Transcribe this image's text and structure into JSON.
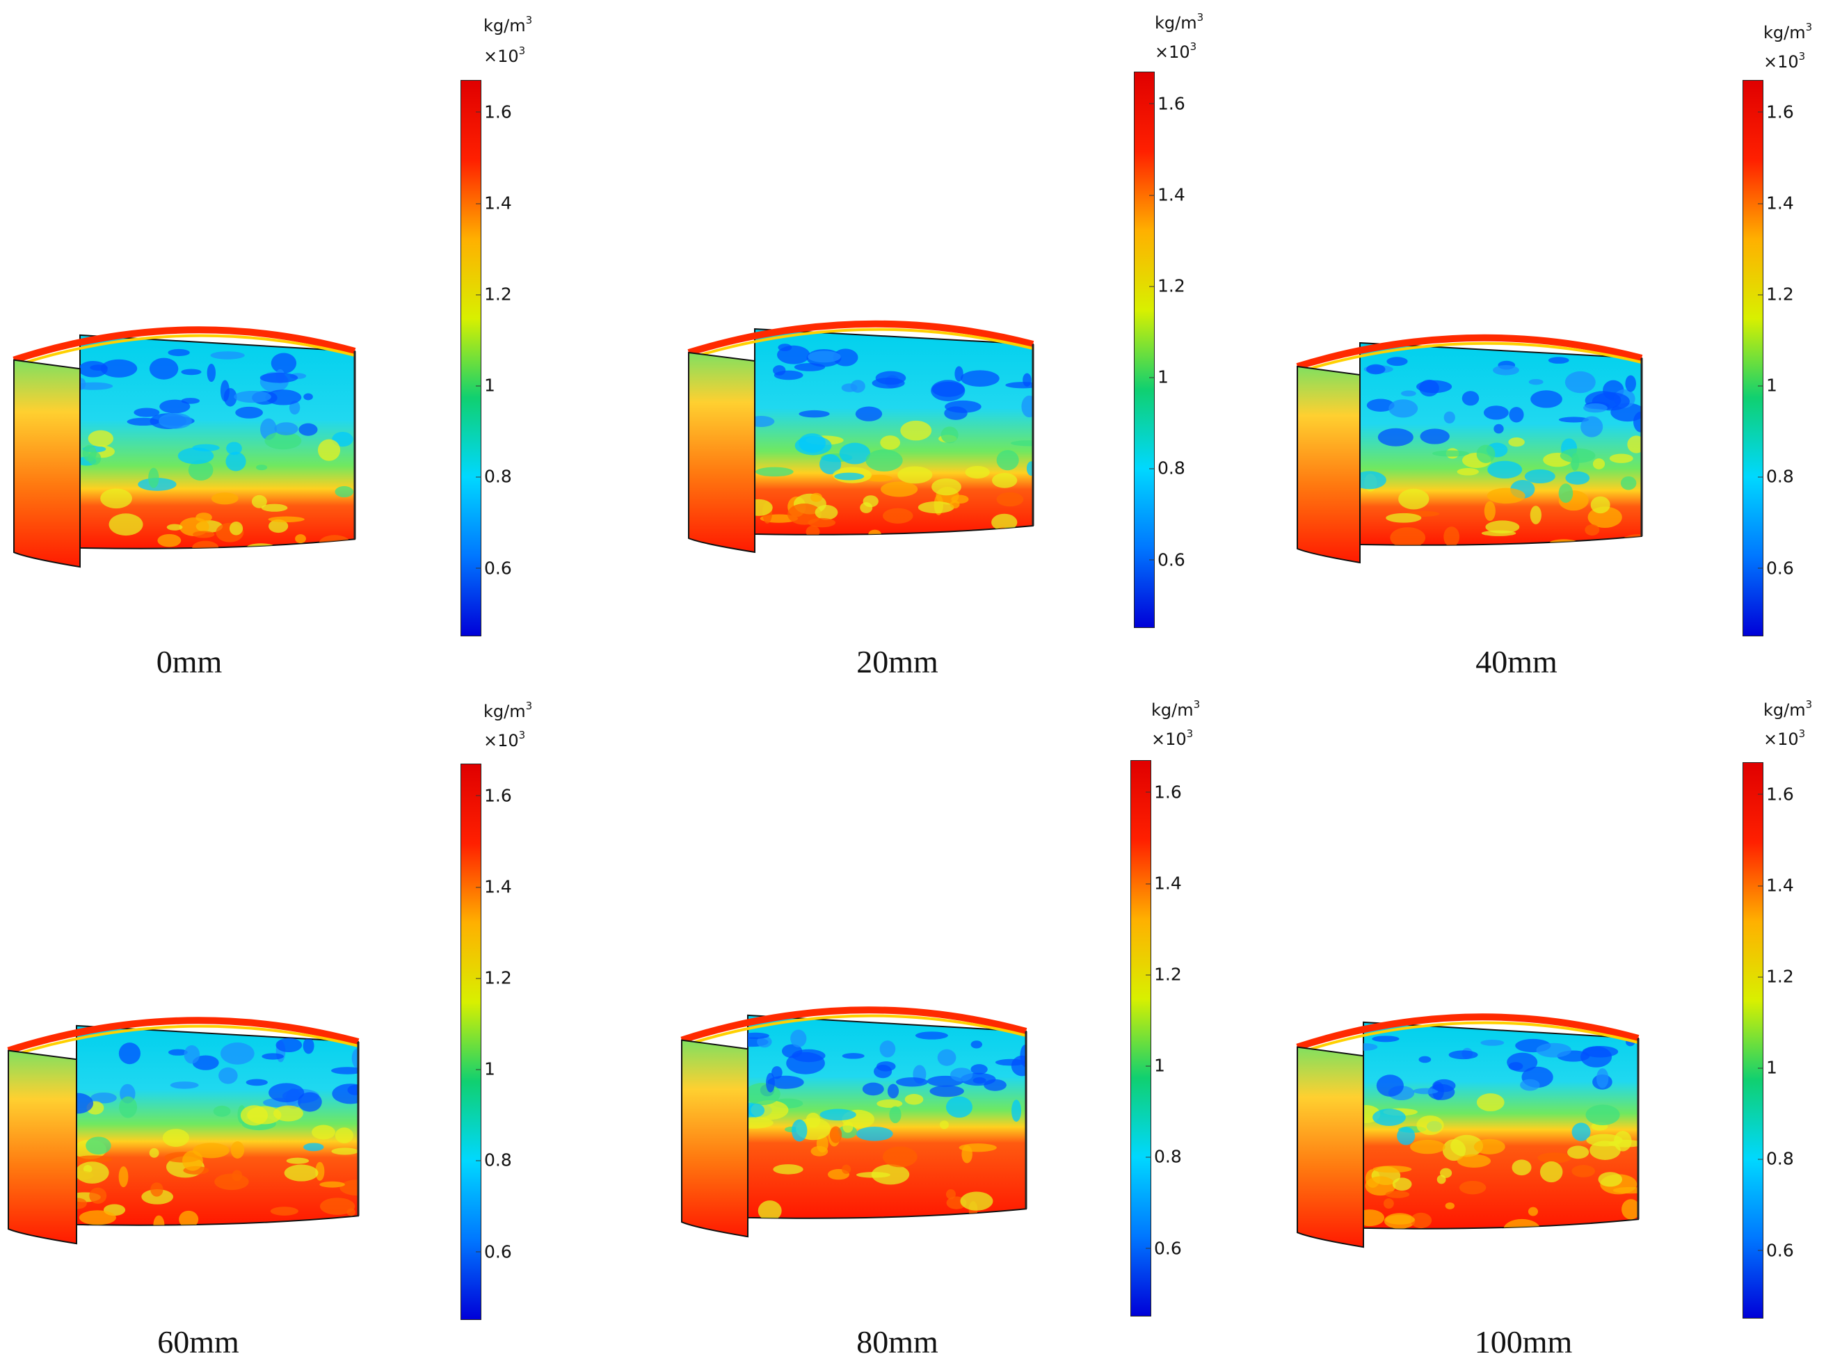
{
  "colorbar": {
    "unit": "kg/m",
    "unit_exp": "3",
    "scale": "×10",
    "scale_exp": "3",
    "ticks": [
      "1.6",
      "1.4",
      "1.2",
      "1",
      "0.8",
      "0.6"
    ],
    "tick_values": [
      1.6,
      1.4,
      1.2,
      1.0,
      0.8,
      0.6
    ],
    "range": [
      0.45,
      1.67
    ],
    "colors": [
      "#0000d8",
      "#0077ff",
      "#00d8ff",
      "#10d070",
      "#d8f000",
      "#ffb000",
      "#ff2000",
      "#e00000"
    ]
  },
  "panels": [
    {
      "label": "0mm",
      "interface_level": 0.72
    },
    {
      "label": "20mm",
      "interface_level": 0.7
    },
    {
      "label": "40mm",
      "interface_level": 0.73
    },
    {
      "label": "60mm",
      "interface_level": 0.58
    },
    {
      "label": "80mm",
      "interface_level": 0.55
    },
    {
      "label": "100mm",
      "interface_level": 0.52
    }
  ]
}
